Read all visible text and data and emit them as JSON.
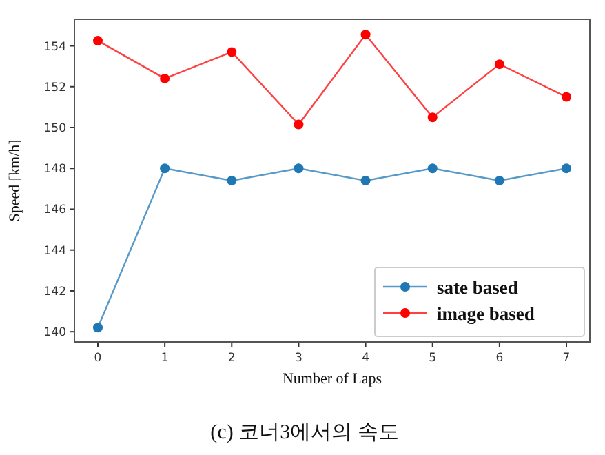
{
  "chart_data": {
    "type": "line",
    "title": "(c) 코너3에서의 속도",
    "xlabel": "Number of Laps",
    "ylabel": "Speed [km/h]",
    "x": [
      0,
      1,
      2,
      3,
      4,
      5,
      6,
      7
    ],
    "series": [
      {
        "name": "sate based",
        "color": "#1f77b4",
        "values": [
          140.2,
          148,
          147.4,
          148,
          147.4,
          148,
          147.4,
          148
        ]
      },
      {
        "name": "image based",
        "color": "#ff0000",
        "values": [
          154.25,
          152.4,
          153.7,
          150.15,
          154.55,
          150.5,
          153.1,
          151.5
        ]
      }
    ],
    "xlim": [
      -0.35,
      7.35
    ],
    "xticks": [
      0,
      1,
      2,
      3,
      4,
      5,
      6,
      7
    ],
    "ylim": [
      139.5,
      155.3
    ],
    "yticks": [
      140,
      142,
      144,
      146,
      148,
      150,
      152,
      154
    ],
    "marker": "circle",
    "legend": "bottom right",
    "grid": false
  }
}
